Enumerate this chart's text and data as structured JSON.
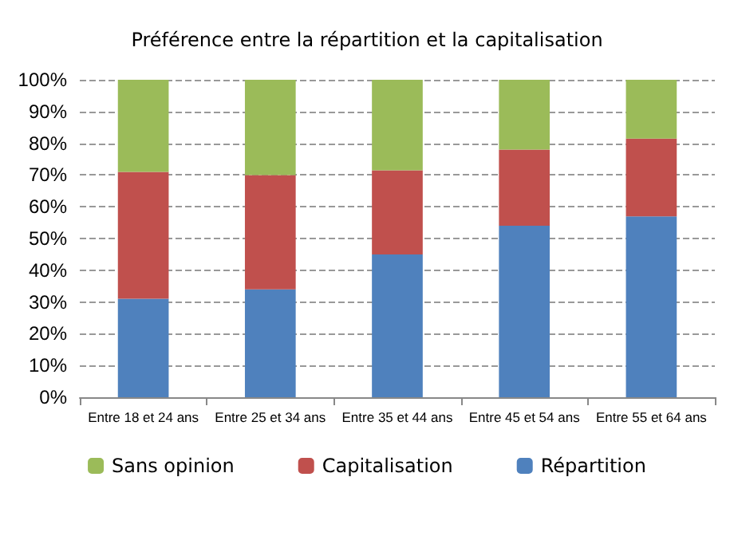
{
  "chart_data": {
    "type": "bar",
    "title": "Préférence entre la répartition et la capitalisation",
    "stacked": true,
    "categories": [
      "Entre 18 et 24 ans",
      "Entre 25 et 34 ans",
      "Entre 35 et 44 ans",
      "Entre 45 et 54 ans",
      "Entre 55 et 64 ans"
    ],
    "series": [
      {
        "name": "Répartition",
        "color": "#4f81bd",
        "values": [
          31,
          34,
          45,
          54,
          57
        ]
      },
      {
        "name": "Capitalisation",
        "color": "#c0504d",
        "values": [
          40,
          36,
          26.5,
          24,
          24.5
        ]
      },
      {
        "name": "Sans opinion",
        "color": "#9bbb59",
        "values": [
          29,
          30,
          28.5,
          22,
          18.5
        ]
      }
    ],
    "ylim": [
      0,
      100
    ],
    "yticks": [
      {
        "value": 0,
        "label": "0%"
      },
      {
        "value": 10,
        "label": "10%"
      },
      {
        "value": 20,
        "label": "20%"
      },
      {
        "value": 30,
        "label": "30%"
      },
      {
        "value": 40,
        "label": "40%"
      },
      {
        "value": 50,
        "label": "50%"
      },
      {
        "value": 60,
        "label": "60%"
      },
      {
        "value": 70,
        "label": "70%"
      },
      {
        "value": 80,
        "label": "80%"
      },
      {
        "value": 90,
        "label": "90%"
      },
      {
        "value": 100,
        "label": "100%"
      }
    ],
    "grid": "y",
    "legend": "bottom"
  }
}
